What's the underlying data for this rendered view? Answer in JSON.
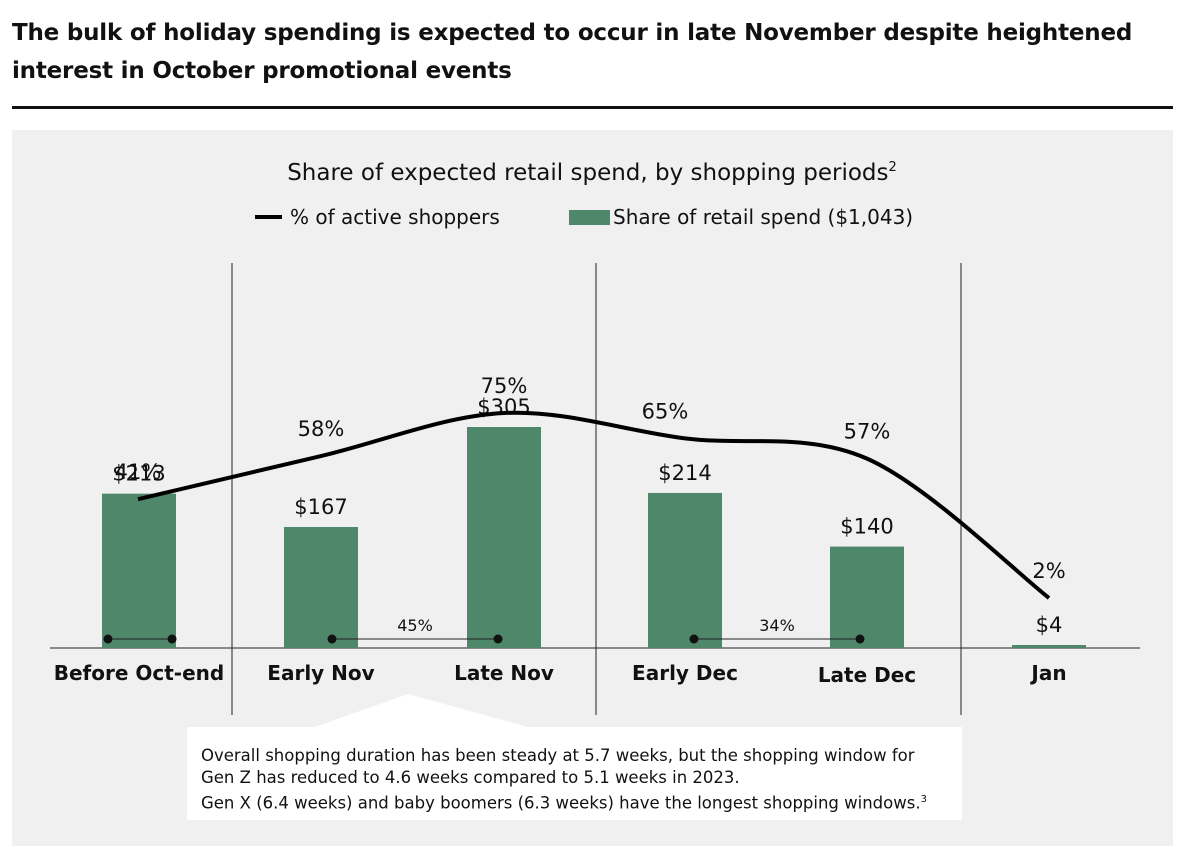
{
  "headline": "The bulk of holiday spending is expected to occur in late November despite heightened interest in October promotional events",
  "colors": {
    "bar": "#4e8769",
    "line": "#000000",
    "panel": "#f0f0f0"
  },
  "chart_data": {
    "type": "bar",
    "title": "Share of expected retail spend, by shopping periods",
    "title_footnote": "2",
    "categories": [
      "Before Oct-end",
      "Early Nov",
      "Late Nov",
      "Early Dec",
      "Late Dec",
      "Jan"
    ],
    "series": [
      {
        "name": "Share of retail spend ($1,043)",
        "kind": "bar",
        "values": [
          213,
          167,
          305,
          214,
          140,
          4
        ],
        "labels": [
          "$213",
          "$167",
          "$305",
          "$214",
          "$140",
          "$4"
        ]
      },
      {
        "name": "% of active shoppers",
        "kind": "line",
        "values": [
          41,
          58,
          75,
          65,
          57,
          2
        ],
        "labels": [
          "41%",
          "58%",
          "75%",
          "65%",
          "57%",
          "2%"
        ]
      }
    ],
    "ylim": [
      0,
      330
    ],
    "line_ylim": [
      0,
      100
    ],
    "brackets": [
      {
        "label": "",
        "from": "Before Oct-end",
        "to": "Before Oct-end"
      },
      {
        "label": "45%",
        "from": "Early Nov",
        "to": "Late Nov"
      },
      {
        "label": "34%",
        "from": "Early Dec",
        "to": "Late Dec"
      }
    ],
    "xlabel": "",
    "ylabel": ""
  },
  "note": {
    "lines": [
      "Overall shopping duration has been steady at 5.7 weeks, but the shopping window for",
      "Gen Z has reduced to 4.6 weeks compared to 5.1 weeks in 2023.",
      "Gen X (6.4 weeks) and baby boomers (6.3 weeks) have the longest shopping windows."
    ],
    "footnote": "3"
  }
}
